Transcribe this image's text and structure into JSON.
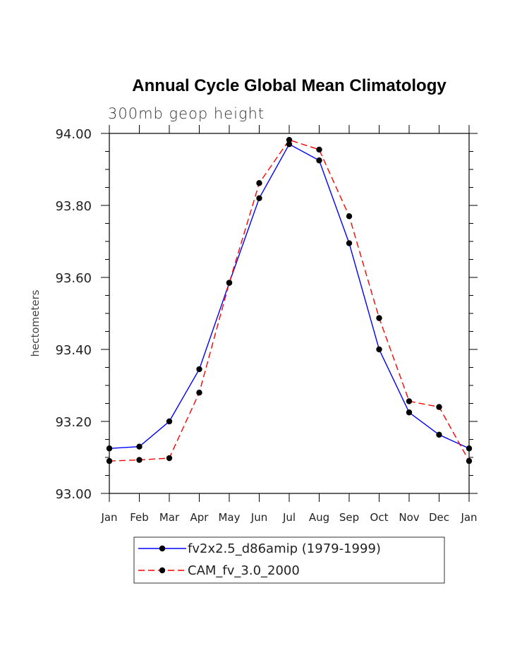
{
  "chart_data": {
    "type": "line",
    "title": "Annual Cycle Global Mean Climatology",
    "subtitle": "300mb geop height",
    "xlabel": "",
    "ylabel": "hectometers",
    "categories": [
      "Jan",
      "Feb",
      "Mar",
      "Apr",
      "May",
      "Jun",
      "Jul",
      "Aug",
      "Sep",
      "Oct",
      "Nov",
      "Dec",
      "Jan"
    ],
    "ylim": [
      93.0,
      94.0
    ],
    "yticks": [
      "93.00",
      "93.20",
      "93.40",
      "93.60",
      "93.80",
      "94.00"
    ],
    "legend_position": "bottom",
    "grid": false,
    "series": [
      {
        "name": "fv2x2.5_d86amip (1979-1999)",
        "color": "#0000ff",
        "dash": "solid",
        "values": [
          93.125,
          93.13,
          93.2,
          93.345,
          93.585,
          93.82,
          93.97,
          93.925,
          93.695,
          93.4,
          93.225,
          93.163,
          93.125
        ]
      },
      {
        "name": "CAM_fv_3.0_2000",
        "color": "#ff0000",
        "dash": "dashed",
        "values": [
          93.09,
          93.093,
          93.098,
          93.28,
          93.585,
          93.862,
          93.982,
          93.955,
          93.77,
          93.487,
          93.256,
          93.24,
          93.09
        ]
      }
    ]
  }
}
